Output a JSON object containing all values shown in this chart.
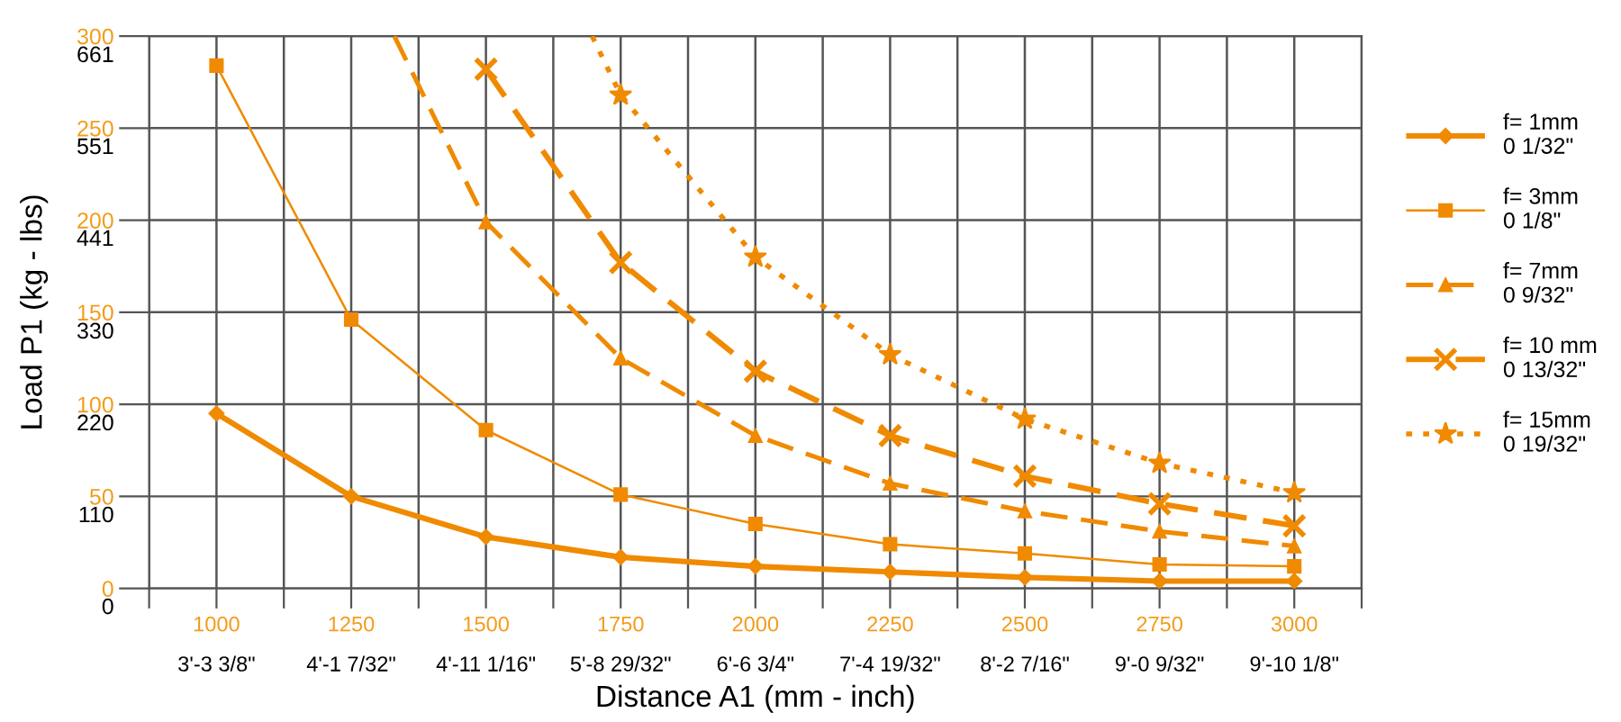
{
  "chart_data": {
    "type": "line",
    "xlabel": "Distance A1 (mm - inch)",
    "y2label": "Load P1 (kg - lbs)",
    "xlim": [
      875,
      3125
    ],
    "xticks": [
      {
        "value": 875,
        "label": null
      },
      1000,
      {
        "value": 1125,
        "label": null
      },
      1250,
      {
        "value": 1375,
        "label": null
      },
      1500,
      {
        "value": 1625,
        "label": null
      },
      1750,
      {
        "value": 1875,
        "label": null
      },
      2000,
      {
        "value": 2125,
        "label": null
      },
      2250,
      {
        "value": 2375,
        "label": null
      },
      2500,
      {
        "value": 2625,
        "label": null
      },
      2750,
      {
        "value": 2875,
        "label": null
      },
      3000,
      {
        "value": 3125,
        "label": null
      }
    ],
    "annotations": [
      "3'-3 3/8\"",
      "4'-1 7/32\"",
      "4'-11 1/16\"",
      "5'-8 29/32\"",
      "6'-6 3/4\"",
      "7'-4 19/32\"",
      "8'-2 7/16\"",
      "9'-0 9/32\"",
      "9'-10 1/8\""
    ],
    "ylim": [
      0,
      300
    ],
    "yticks": [
      0,
      50,
      100,
      150,
      200,
      250,
      300
    ],
    "y2lim": [
      0,
      661.4
    ],
    "y2ticks": [
      0,
      110,
      220,
      330,
      441,
      551,
      661
    ],
    "grid": true,
    "legend": "right",
    "series": [
      {
        "name": "f= 1mm\n0 1/32\"",
        "color": "#f08a00",
        "marker": "diamond",
        "line_style": "solid",
        "x": [
          1000,
          1250,
          1500,
          1750,
          2000,
          2250,
          2500,
          2750,
          3000
        ],
        "values": [
          95,
          50,
          28,
          17,
          12,
          9,
          6,
          4,
          4
        ]
      },
      {
        "name": "f= 3mm\n0 1/8\"",
        "color": "#f08a00",
        "marker": "square",
        "line_style": "solid",
        "x": [
          1000,
          1250,
          1500,
          1750,
          2000,
          2250,
          2500,
          2750,
          3000
        ],
        "values": [
          284,
          146,
          86,
          51,
          35,
          24,
          19,
          13,
          12
        ]
      },
      {
        "name": "f= 7mm\n0 9/32\"",
        "color": "#f08a00",
        "marker": "triangle",
        "line_style": "dashed",
        "x": [
          1330,
          1500,
          1750,
          2000,
          2250,
          2500,
          2750,
          3000
        ],
        "values": [
          300,
          199,
          125,
          83,
          57,
          42,
          31,
          23
        ]
      },
      {
        "name": "f= 10 mm\n0 13/32\"",
        "color": "#f08a00",
        "marker": "cross",
        "line_style": "dashed",
        "x": [
          1500,
          1750,
          2000,
          2250,
          2500,
          2750,
          3000
        ],
        "values": [
          282,
          177,
          118,
          83,
          61,
          46,
          34
        ]
      },
      {
        "name": "f= 15mm\n0 19/32\"",
        "color": "#f08a00",
        "marker": "star",
        "line_style": "dotted",
        "x": [
          1697,
          1750,
          2000,
          2250,
          2500,
          2750,
          3000
        ],
        "values": [
          300,
          268,
          180,
          127,
          92,
          68,
          52
        ]
      }
    ]
  }
}
